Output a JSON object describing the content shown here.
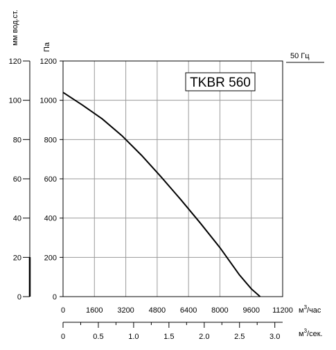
{
  "chart_data": {
    "type": "line",
    "title": "TKBR 560",
    "legend": "50 Гц",
    "grid": true,
    "left_axis_label": "мм вод.ст.",
    "left_axis_ticks": [
      "120",
      "100",
      "80",
      "60",
      "40",
      "20",
      "0"
    ],
    "ylabel": "Па",
    "ylim": [
      0,
      1200
    ],
    "y_ticks": [
      "1200",
      "1000",
      "800",
      "600",
      "400",
      "200",
      "0"
    ],
    "xlabel": "м³/час",
    "xlim": [
      0,
      11200
    ],
    "x_ticks": [
      "0",
      "1600",
      "3200",
      "4800",
      "6400",
      "8000",
      "9600",
      "11200"
    ],
    "x2label": "м³/сек.",
    "x2lim": [
      0,
      3.111
    ],
    "x2_ticks": [
      "0",
      "0.5",
      "1.0",
      "1.5",
      "2.0",
      "2.5",
      "3.0"
    ],
    "series": [
      {
        "x": [
          0,
          1000,
          2000,
          3000,
          4000,
          5000,
          6000,
          7000,
          8000,
          9000,
          9600,
          10050
        ],
        "y": [
          1040,
          975,
          905,
          820,
          720,
          610,
          495,
          375,
          250,
          110,
          40,
          0
        ]
      }
    ]
  }
}
